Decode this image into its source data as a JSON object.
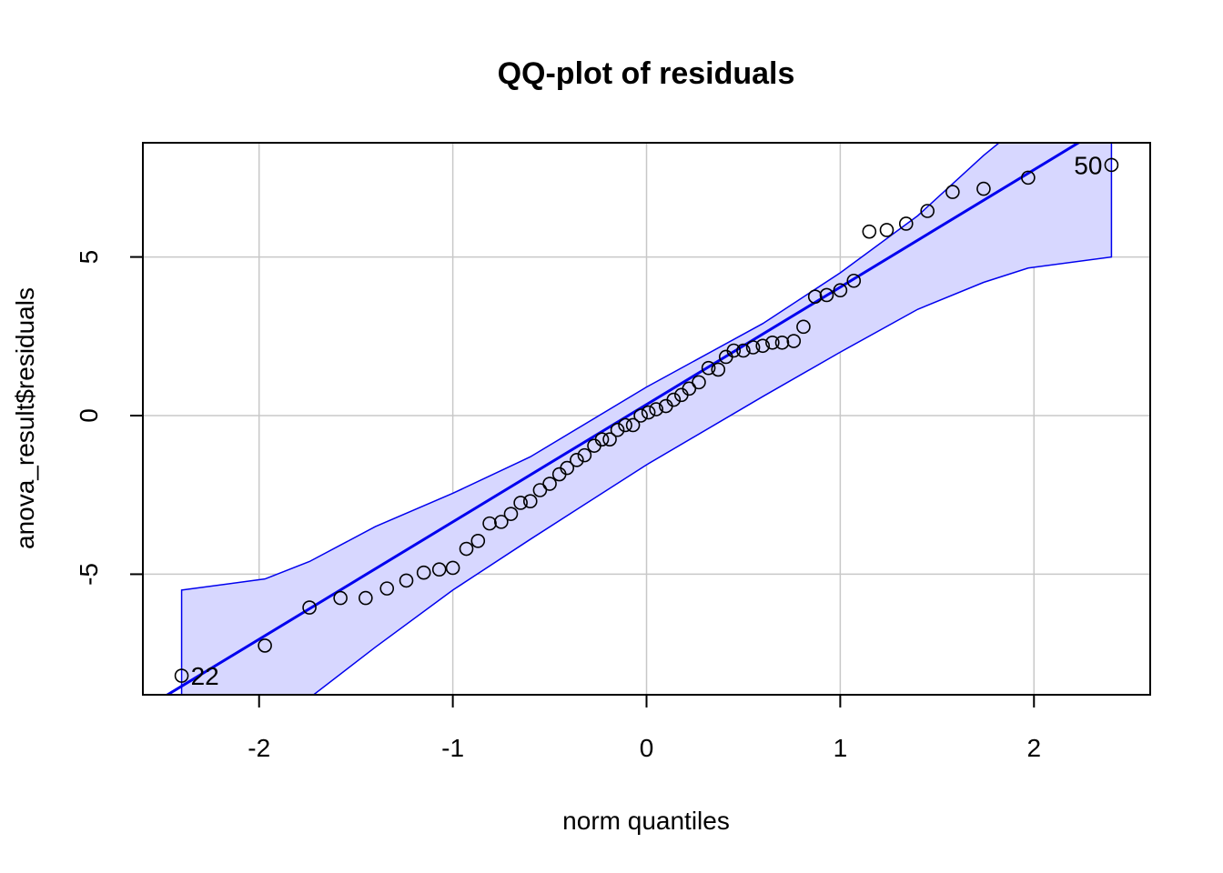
{
  "chart_data": {
    "type": "scatter",
    "title": "QQ-plot of residuals",
    "xlabel": "norm quantiles",
    "ylabel": "anova_result$residuals",
    "xlim": [
      -2.6,
      2.6
    ],
    "ylim": [
      -8.8,
      8.6
    ],
    "xticks": [
      -2,
      -1,
      0,
      1,
      2
    ],
    "yticks": [
      -5,
      0,
      5
    ],
    "grid": true,
    "colors": {
      "band_fill": "#d7d7ff",
      "band_edge": "#0000ee",
      "line": "#0000ee",
      "points": "#000000"
    },
    "points": [
      [
        -2.4,
        -8.2
      ],
      [
        -1.97,
        -7.25
      ],
      [
        -1.74,
        -6.05
      ],
      [
        -1.58,
        -5.75
      ],
      [
        -1.45,
        -5.75
      ],
      [
        -1.34,
        -5.45
      ],
      [
        -1.24,
        -5.2
      ],
      [
        -1.15,
        -4.95
      ],
      [
        -1.07,
        -4.85
      ],
      [
        -1.0,
        -4.8
      ],
      [
        -0.93,
        -4.2
      ],
      [
        -0.87,
        -3.95
      ],
      [
        -0.81,
        -3.4
      ],
      [
        -0.75,
        -3.35
      ],
      [
        -0.7,
        -3.1
      ],
      [
        -0.65,
        -2.75
      ],
      [
        -0.6,
        -2.7
      ],
      [
        -0.55,
        -2.35
      ],
      [
        -0.5,
        -2.15
      ],
      [
        -0.45,
        -1.85
      ],
      [
        -0.41,
        -1.65
      ],
      [
        -0.36,
        -1.4
      ],
      [
        -0.32,
        -1.25
      ],
      [
        -0.27,
        -0.95
      ],
      [
        -0.23,
        -0.75
      ],
      [
        -0.19,
        -0.75
      ],
      [
        -0.15,
        -0.45
      ],
      [
        -0.11,
        -0.3
      ],
      [
        -0.07,
        -0.3
      ],
      [
        -0.03,
        0.0
      ],
      [
        0.01,
        0.1
      ],
      [
        0.05,
        0.2
      ],
      [
        0.1,
        0.3
      ],
      [
        0.14,
        0.5
      ],
      [
        0.18,
        0.65
      ],
      [
        0.22,
        0.85
      ],
      [
        0.27,
        1.05
      ],
      [
        0.32,
        1.5
      ],
      [
        0.37,
        1.45
      ],
      [
        0.41,
        1.85
      ],
      [
        0.45,
        2.05
      ],
      [
        0.5,
        2.05
      ],
      [
        0.55,
        2.15
      ],
      [
        0.6,
        2.2
      ],
      [
        0.65,
        2.3
      ],
      [
        0.7,
        2.3
      ],
      [
        0.76,
        2.35
      ],
      [
        0.81,
        2.8
      ],
      [
        0.87,
        3.75
      ],
      [
        0.93,
        3.8
      ],
      [
        1.0,
        3.95
      ],
      [
        1.07,
        4.25
      ],
      [
        1.15,
        5.8
      ],
      [
        1.24,
        5.85
      ],
      [
        1.34,
        6.05
      ],
      [
        1.45,
        6.45
      ],
      [
        1.58,
        7.05
      ],
      [
        1.74,
        7.15
      ],
      [
        1.97,
        7.5
      ],
      [
        2.4,
        7.9
      ]
    ],
    "labeled_points": [
      {
        "label": "22",
        "x": -2.4,
        "y": -8.2
      },
      {
        "label": "50",
        "x": 2.4,
        "y": 7.9
      }
    ],
    "reference_line": {
      "intercept": 0.35,
      "slope": 3.7
    },
    "band": {
      "upper": [
        [
          -2.4,
          -5.5
        ],
        [
          -1.97,
          -5.15
        ],
        [
          -1.74,
          -4.6
        ],
        [
          -1.4,
          -3.5
        ],
        [
          -1.0,
          -2.45
        ],
        [
          -0.6,
          -1.3
        ],
        [
          0.0,
          0.9
        ],
        [
          0.6,
          2.9
        ],
        [
          1.0,
          4.5
        ],
        [
          1.4,
          6.3
        ],
        [
          1.74,
          8.2
        ],
        [
          2.0,
          9.5
        ],
        [
          2.4,
          9.5
        ]
      ],
      "lower": [
        [
          -2.4,
          -9.5
        ],
        [
          -1.97,
          -9.5
        ],
        [
          -1.74,
          -8.9
        ],
        [
          -1.4,
          -7.3
        ],
        [
          -1.0,
          -5.5
        ],
        [
          -0.6,
          -3.9
        ],
        [
          0.0,
          -1.55
        ],
        [
          0.6,
          0.6
        ],
        [
          1.0,
          2.0
        ],
        [
          1.4,
          3.35
        ],
        [
          1.74,
          4.2
        ],
        [
          1.97,
          4.65
        ],
        [
          2.4,
          5.0
        ]
      ]
    }
  }
}
